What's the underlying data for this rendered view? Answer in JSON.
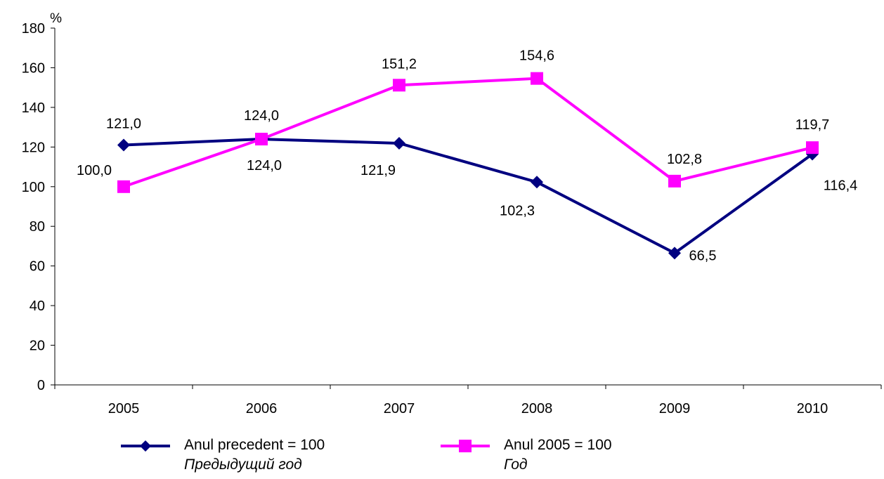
{
  "chart_data": {
    "type": "line",
    "ylabel": "%",
    "ylim": [
      0,
      180
    ],
    "yticks": [
      0,
      20,
      40,
      60,
      80,
      100,
      120,
      140,
      160,
      180
    ],
    "categories": [
      "2005",
      "2006",
      "2007",
      "2008",
      "2009",
      "2010"
    ],
    "grid": false,
    "legend_position": "bottom",
    "series": [
      {
        "name": "Anul precedent = 100",
        "name_ru": "Предыдущий год",
        "color": "#000080",
        "marker": "diamond",
        "values": [
          121.0,
          124.0,
          121.9,
          102.3,
          66.5,
          116.4
        ],
        "labels": [
          "121,0",
          "124,0",
          "121,9",
          "102,3",
          "66,5",
          "116,4"
        ]
      },
      {
        "name": "Anul 2005 = 100",
        "name_ru": "Год",
        "color": "#ff00ff",
        "marker": "square",
        "values": [
          100.0,
          124.0,
          151.2,
          154.6,
          102.8,
          119.7
        ],
        "labels": [
          "100,0",
          "124,0",
          "151,2",
          "154,6",
          "102,8",
          "119,7"
        ]
      }
    ]
  }
}
